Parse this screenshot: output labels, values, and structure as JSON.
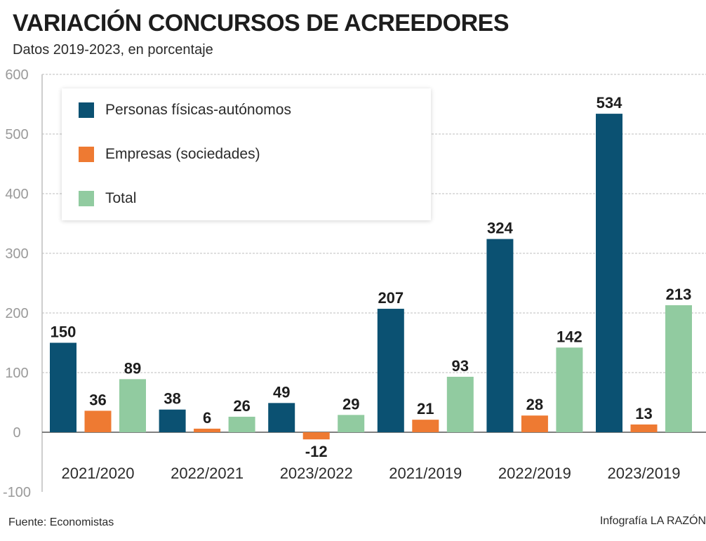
{
  "header": {
    "title": "VARIACIÓN CONCURSOS DE ACREEDORES",
    "subtitle": "Datos 2019-2023, en porcentaje"
  },
  "footer": {
    "source": "Fuente: Economistas",
    "credit": "Infografía LA RAZÓN"
  },
  "chart_data": {
    "type": "bar",
    "title": "VARIACIÓN CONCURSOS DE ACREEDORES",
    "subtitle": "Datos 2019-2023, en porcentaje",
    "xlabel": "",
    "ylabel": "",
    "ylim": [
      -100,
      600
    ],
    "yticks": [
      600,
      500,
      400,
      300,
      200,
      100,
      0,
      -100
    ],
    "grid": true,
    "legend_position": "top-left",
    "categories": [
      "2021/2020",
      "2022/2021",
      "2023/2022",
      "2021/2019",
      "2022/2019",
      "2023/2019"
    ],
    "series": [
      {
        "name": "Personas físicas-autónomos",
        "color": "#0b5172",
        "values": [
          150,
          38,
          49,
          207,
          324,
          534
        ]
      },
      {
        "name": "Empresas (sociedades)",
        "color": "#ee7a32",
        "values": [
          36,
          6,
          -12,
          21,
          28,
          13
        ]
      },
      {
        "name": "Total",
        "color": "#91cba0",
        "values": [
          89,
          26,
          29,
          93,
          142,
          213
        ]
      }
    ]
  }
}
